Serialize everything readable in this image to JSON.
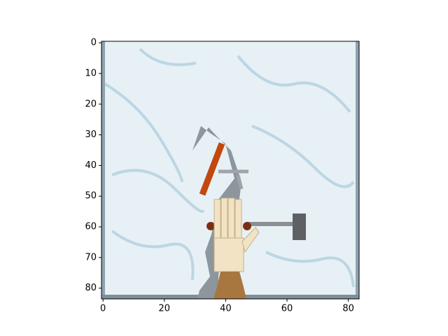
{
  "chart_data": {
    "type": "image",
    "xlim": [
      -0.5,
      83.5
    ],
    "ylim": [
      83.5,
      -0.5
    ],
    "xticks": [
      0,
      20,
      40,
      60,
      80
    ],
    "yticks": [
      0,
      10,
      20,
      30,
      40,
      50,
      60,
      70,
      80
    ]
  }
}
